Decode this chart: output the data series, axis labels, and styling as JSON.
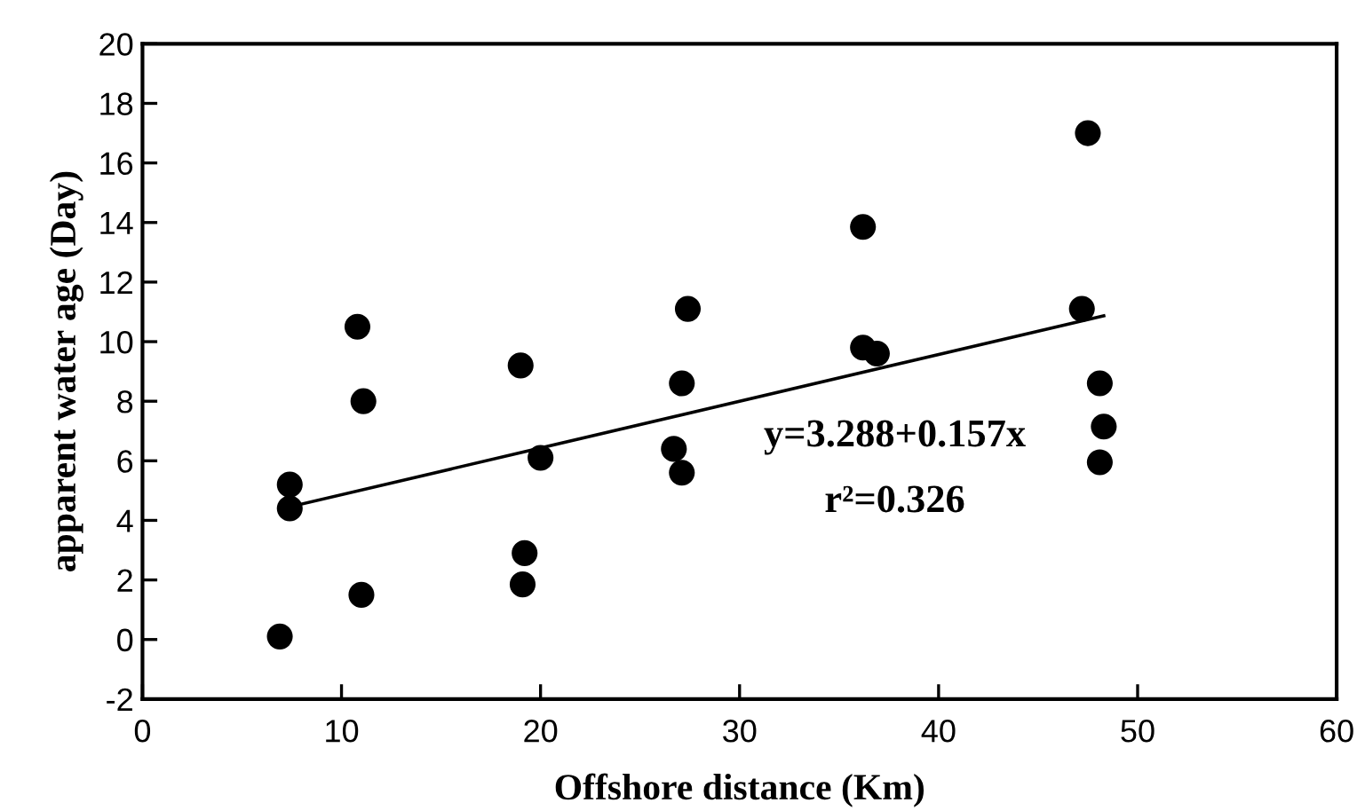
{
  "chart_data": {
    "type": "scatter",
    "xlabel": "Offshore distance (Km)",
    "ylabel": "apparent water age (Day)",
    "xlim": [
      0,
      60
    ],
    "xticks": [
      0,
      10,
      20,
      30,
      40,
      50,
      60
    ],
    "ylim": [
      -2,
      20
    ],
    "yticks": [
      -2,
      0,
      2,
      4,
      6,
      8,
      10,
      12,
      14,
      16,
      18,
      20
    ],
    "grid": false,
    "series": [
      {
        "marker": "circle",
        "color": "#000000",
        "x": [
          6.9,
          7.4,
          7.4,
          10.8,
          11.1,
          11.0,
          19.0,
          19.2,
          19.1,
          20.0,
          26.7,
          27.1,
          27.1,
          27.4,
          36.2,
          36.2,
          36.9,
          47.5,
          47.2,
          48.1,
          48.3,
          48.1
        ],
        "values": [
          0.1,
          4.4,
          5.2,
          10.5,
          8.0,
          1.5,
          9.2,
          2.9,
          1.85,
          6.1,
          6.4,
          5.6,
          8.6,
          11.1,
          13.85,
          9.8,
          9.6,
          17.0,
          11.1,
          8.6,
          7.15,
          5.95
        ]
      },
      {
        "type": "line",
        "marker": "none",
        "color": "#000000",
        "x": [
          7.5,
          48.3
        ],
        "values": [
          4.47,
          10.87
        ]
      }
    ],
    "annotations": [
      "y=3.288+0.157x",
      "r²=0.326"
    ]
  }
}
